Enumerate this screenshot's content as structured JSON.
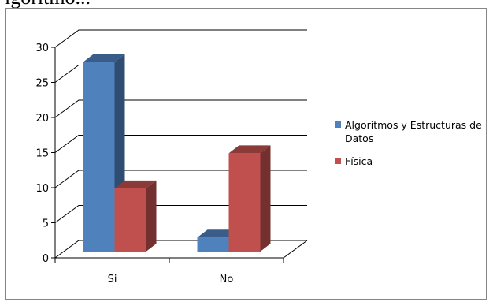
{
  "page": {
    "top_text": "igoritmo..."
  },
  "chart_data": {
    "type": "bar",
    "categories": [
      "Si",
      "No"
    ],
    "series": [
      {
        "name": "Algoritmos y Estructuras de Datos",
        "values": [
          27,
          2
        ],
        "color": "#4f81bd"
      },
      {
        "name": "Física",
        "values": [
          9,
          14
        ],
        "color": "#c0504d"
      }
    ],
    "yticks": [
      0,
      5,
      10,
      15,
      20,
      25,
      30
    ],
    "ylim": [
      0,
      30
    ],
    "grid": true,
    "three_d": true,
    "legend_position": "right"
  }
}
